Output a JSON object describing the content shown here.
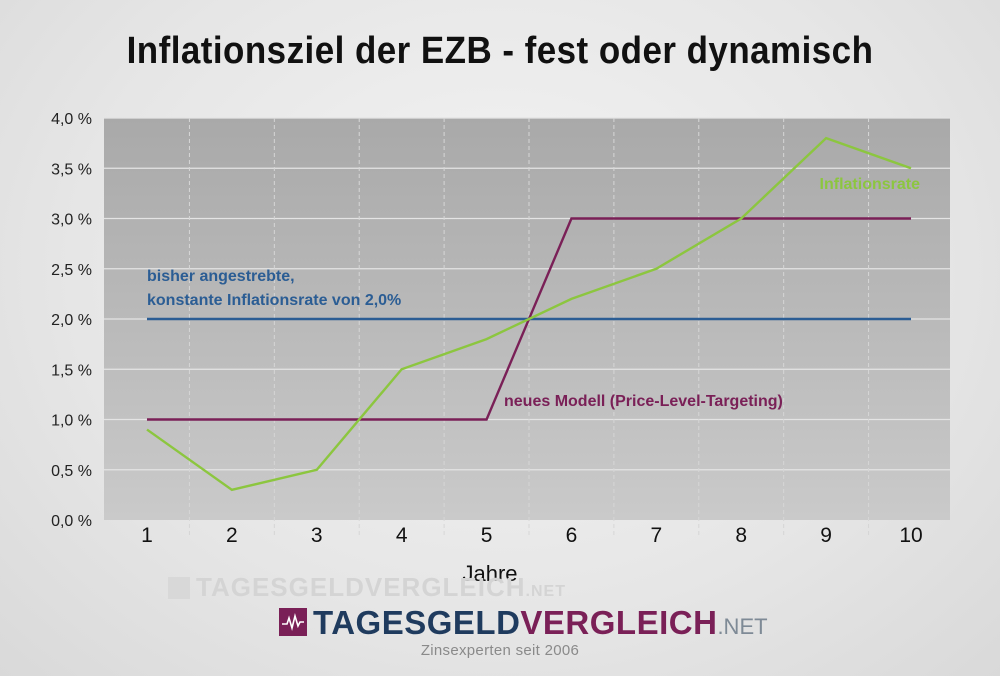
{
  "chart_data": {
    "type": "line",
    "title": "Inflationsziel der EZB - fest oder dynamisch",
    "xlabel": "Jahre",
    "ylabel": "",
    "x": [
      1,
      2,
      3,
      4,
      5,
      6,
      7,
      8,
      9,
      10
    ],
    "x_tick_labels": [
      "1",
      "2",
      "3",
      "4",
      "5",
      "6",
      "7",
      "8",
      "9",
      "10"
    ],
    "y_tick_labels": [
      "0,0 %",
      "0,5 %",
      "1,0 %",
      "1,5 %",
      "2,0 %",
      "2,5 %",
      "3,0 %",
      "3,5 %",
      "4,0 %"
    ],
    "ylim": [
      0,
      4
    ],
    "grid": true,
    "series": [
      {
        "name": "Inflationsrate",
        "color": "#8cc63f",
        "points": [
          [
            1,
            0.9
          ],
          [
            2,
            0.3
          ],
          [
            3,
            0.5
          ],
          [
            4,
            1.5
          ],
          [
            5,
            1.8
          ],
          [
            6,
            2.2
          ],
          [
            7,
            2.5
          ],
          [
            8,
            3.0
          ],
          [
            9,
            3.8
          ],
          [
            10,
            3.5
          ]
        ],
        "label_position": "top-right"
      },
      {
        "name": "bisher angestrebte,\nkonstante Inflationsrate von 2,0%",
        "label_lines": [
          "bisher angestrebte,",
          "konstante Inflationsrate von 2,0%"
        ],
        "color": "#2b5d94",
        "points": [
          [
            1,
            2.0
          ],
          [
            10,
            2.0
          ]
        ],
        "label_position": "above-left"
      },
      {
        "name": "neues Modell (Price-Level-Targeting)",
        "color": "#7a2057",
        "points": [
          [
            1,
            1.0
          ],
          [
            5,
            1.0
          ],
          [
            6,
            3.0
          ],
          [
            10,
            3.0
          ]
        ],
        "label_position": "middle"
      }
    ]
  },
  "branding": {
    "watermark": "TAGESGELDVERGLEICH",
    "watermark_suffix": ".NET",
    "logo_part1": "TAGESGELD",
    "logo_part2": "VERGLEICH",
    "logo_suffix": ".NET",
    "tagline": "Zinsexperten seit 2006"
  }
}
